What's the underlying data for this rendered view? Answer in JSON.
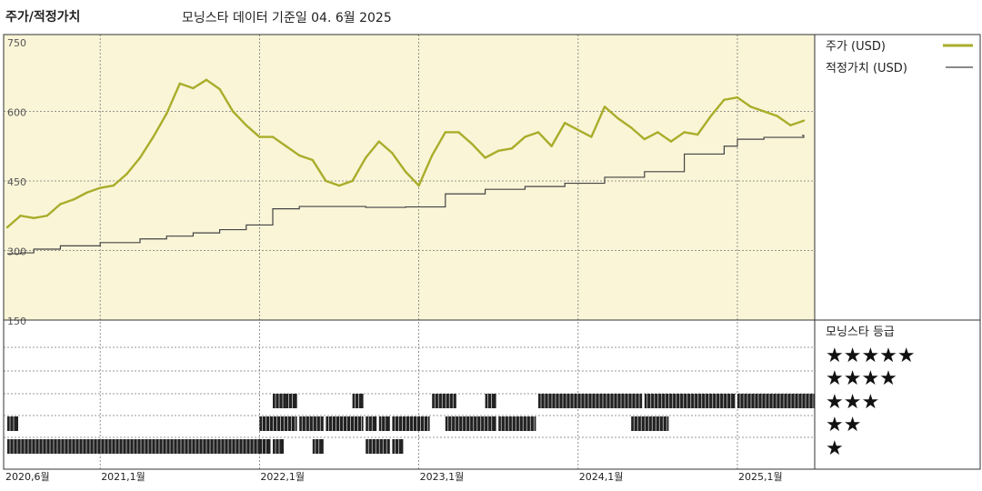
{
  "header": {
    "title": "주가/적정가치",
    "subtitle": "모닝스타 데이터 기준일 04. 6월 2025"
  },
  "legend": {
    "price_label": "주가 (USD)",
    "fair_value_label": "적정가치 (USD)",
    "rating_title": "모닝스타 등급",
    "rating_rows": [
      "★★★★★",
      "★★★★",
      "★★★",
      "★★",
      "★"
    ]
  },
  "colors": {
    "price": "#a9ad2a",
    "fair_value": "#444444",
    "plot_background": "#faf5d7",
    "rating_bar": "#222222"
  },
  "chart_data": {
    "type": "line",
    "y_ticks": [
      "750",
      "600",
      "450",
      "300",
      "150"
    ],
    "ylim": [
      150,
      750
    ],
    "xlim": [
      "2020-06",
      "2025-06"
    ],
    "x_ticks": [
      {
        "label": "2020,6월",
        "date": "2020-06"
      },
      {
        "label": "2021,1월",
        "date": "2021-01"
      },
      {
        "label": "2022,1월",
        "date": "2022-01"
      },
      {
        "label": "2023,1월",
        "date": "2023-01"
      },
      {
        "label": "2024,1월",
        "date": "2024-01"
      },
      {
        "label": "2025,1월",
        "date": "2025-01"
      }
    ],
    "series": [
      {
        "name": "주가 (USD)",
        "x": [
          "2020-06",
          "2020-07",
          "2020-08",
          "2020-09",
          "2020-10",
          "2020-11",
          "2020-12",
          "2021-01",
          "2021-02",
          "2021-03",
          "2021-04",
          "2021-05",
          "2021-06",
          "2021-07",
          "2021-08",
          "2021-09",
          "2021-10",
          "2021-11",
          "2021-12",
          "2022-01",
          "2022-02",
          "2022-03",
          "2022-04",
          "2022-05",
          "2022-06",
          "2022-07",
          "2022-08",
          "2022-09",
          "2022-10",
          "2022-11",
          "2022-12",
          "2023-01",
          "2023-02",
          "2023-03",
          "2023-04",
          "2023-05",
          "2023-06",
          "2023-07",
          "2023-08",
          "2023-09",
          "2023-10",
          "2023-11",
          "2023-12",
          "2024-01",
          "2024-02",
          "2024-03",
          "2024-04",
          "2024-05",
          "2024-06",
          "2024-07",
          "2024-08",
          "2024-09",
          "2024-10",
          "2024-11",
          "2024-12",
          "2025-01",
          "2025-02",
          "2025-03",
          "2025-04",
          "2025-05",
          "2025-06"
        ],
        "y": [
          350,
          375,
          370,
          375,
          400,
          410,
          425,
          435,
          440,
          465,
          500,
          545,
          595,
          660,
          650,
          668,
          648,
          600,
          570,
          545,
          545,
          525,
          505,
          495,
          450,
          440,
          450,
          500,
          535,
          510,
          470,
          440,
          505,
          555,
          555,
          530,
          500,
          515,
          520,
          545,
          555,
          525,
          575,
          560,
          545,
          610,
          585,
          565,
          540,
          555,
          535,
          555,
          550,
          590,
          625,
          630,
          610,
          600,
          590,
          570,
          580
        ]
      },
      {
        "name": "적정가치 (USD)",
        "x": [
          "2020-06",
          "2020-07",
          "2020-08",
          "2020-10",
          "2021-01",
          "2021-04",
          "2021-06",
          "2021-08",
          "2021-10",
          "2021-12",
          "2022-02",
          "2022-04",
          "2022-06",
          "2022-09",
          "2022-12",
          "2023-03",
          "2023-06",
          "2023-09",
          "2023-12",
          "2024-03",
          "2024-06",
          "2024-09",
          "2024-12",
          "2025-01",
          "2025-03",
          "2025-06"
        ],
        "y": [
          293,
          295,
          303,
          310,
          317,
          325,
          331,
          338,
          345,
          355,
          390,
          395,
          395,
          393,
          394,
          422,
          432,
          438,
          445,
          458,
          470,
          508,
          525,
          540,
          544,
          548
        ]
      }
    ],
    "ratings": {
      "categories": [
        "★★★★★",
        "★★★★",
        "★★★",
        "★★",
        "★"
      ],
      "segments": [
        {
          "stars": 2,
          "start": "2020-06",
          "end": "2020-06"
        },
        {
          "stars": 1,
          "start": "2020-06",
          "end": "2022-01"
        },
        {
          "stars": 1,
          "start": "2022-01",
          "end": "2022-01"
        },
        {
          "stars": 1,
          "start": "2022-02",
          "end": "2022-02"
        },
        {
          "stars": 2,
          "start": "2022-01",
          "end": "2022-03"
        },
        {
          "stars": 3,
          "start": "2022-02",
          "end": "2022-03"
        },
        {
          "stars": 3,
          "start": "2022-03",
          "end": "2022-03"
        },
        {
          "stars": 2,
          "start": "2022-04",
          "end": "2022-05"
        },
        {
          "stars": 1,
          "start": "2022-05",
          "end": "2022-05"
        },
        {
          "stars": 2,
          "start": "2022-06",
          "end": "2022-08"
        },
        {
          "stars": 3,
          "start": "2022-08",
          "end": "2022-08"
        },
        {
          "stars": 2,
          "start": "2022-09",
          "end": "2022-09"
        },
        {
          "stars": 1,
          "start": "2022-09",
          "end": "2022-10"
        },
        {
          "stars": 2,
          "start": "2022-10",
          "end": "2022-10"
        },
        {
          "stars": 1,
          "start": "2022-11",
          "end": "2022-11"
        },
        {
          "stars": 2,
          "start": "2022-11",
          "end": "2023-01"
        },
        {
          "stars": 3,
          "start": "2023-02",
          "end": "2023-03"
        },
        {
          "stars": 2,
          "start": "2023-03",
          "end": "2023-06"
        },
        {
          "stars": 3,
          "start": "2023-06",
          "end": "2023-06"
        },
        {
          "stars": 2,
          "start": "2023-07",
          "end": "2023-09"
        },
        {
          "stars": 3,
          "start": "2023-10",
          "end": "2024-05"
        },
        {
          "stars": 2,
          "start": "2024-05",
          "end": "2024-07"
        },
        {
          "stars": 3,
          "start": "2024-06",
          "end": "2024-12"
        },
        {
          "stars": 3,
          "start": "2025-01",
          "end": "2025-06"
        }
      ]
    }
  }
}
